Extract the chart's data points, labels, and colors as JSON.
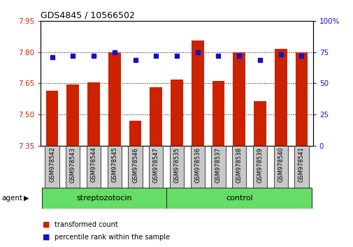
{
  "title": "GDS4845 / 10566502",
  "samples": [
    "GSM978542",
    "GSM978543",
    "GSM978544",
    "GSM978545",
    "GSM978546",
    "GSM978547",
    "GSM978535",
    "GSM978536",
    "GSM978537",
    "GSM978538",
    "GSM978539",
    "GSM978540",
    "GSM978541"
  ],
  "red_values": [
    7.615,
    7.645,
    7.655,
    7.8,
    7.47,
    7.63,
    7.67,
    7.855,
    7.66,
    7.8,
    7.565,
    7.815,
    7.8
  ],
  "blue_values": [
    71,
    72,
    72,
    75,
    69,
    72,
    72,
    75,
    72,
    72,
    69,
    73,
    72
  ],
  "groups": [
    {
      "label": "streptozotocin",
      "indices": [
        0,
        5
      ]
    },
    {
      "label": "control",
      "indices": [
        6,
        12
      ]
    }
  ],
  "ylim_left": [
    7.35,
    7.95
  ],
  "ylim_right": [
    0,
    100
  ],
  "yticks_left": [
    7.35,
    7.5,
    7.65,
    7.8,
    7.95
  ],
  "yticks_right": [
    0,
    25,
    50,
    75,
    100
  ],
  "ytick_labels_right": [
    "0",
    "25",
    "50",
    "75",
    "100%"
  ],
  "bar_color": "#CC2200",
  "blue_color": "#1111CC",
  "grid_yticks": [
    7.5,
    7.65,
    7.8
  ],
  "bar_width": 0.6,
  "blue_marker_size": 5,
  "legend_items": [
    {
      "color": "#CC2200",
      "label": "transformed count"
    },
    {
      "color": "#1111CC",
      "label": "percentile rank within the sample"
    }
  ]
}
